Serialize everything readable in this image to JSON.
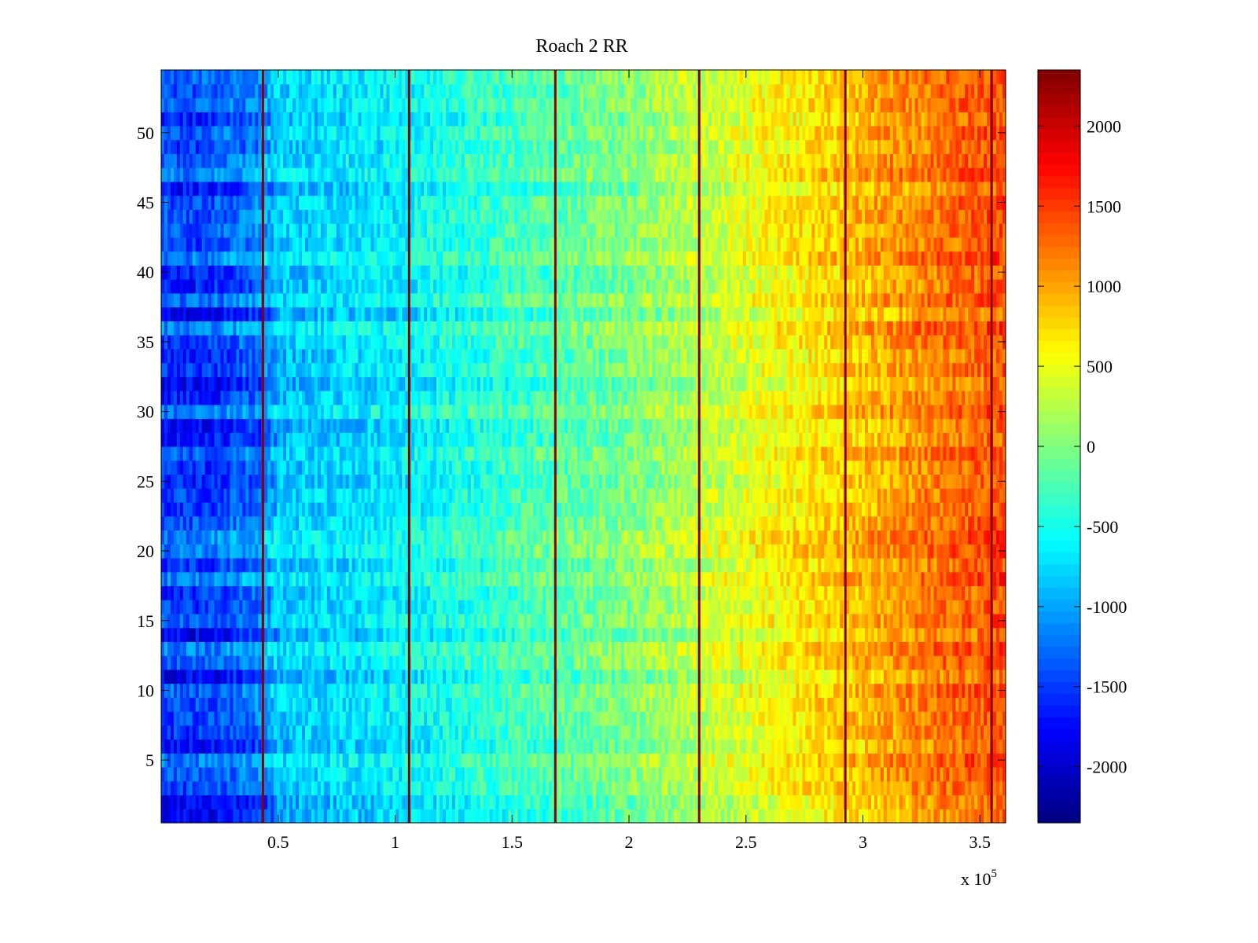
{
  "chart_data": {
    "type": "heatmap",
    "title": "Roach 2 RR",
    "xlabel": "",
    "ylabel": "",
    "colormap": "jet",
    "xlim": [
      0,
      361000
    ],
    "ylim": [
      0.5,
      54.5
    ],
    "x_ticks": [
      50000,
      100000,
      150000,
      200000,
      250000,
      300000,
      350000
    ],
    "x_tick_labels": [
      "0.5",
      "1",
      "1.5",
      "2",
      "2.5",
      "3",
      "3.5"
    ],
    "x_multiplier_label": "x 10",
    "x_multiplier_exponent": "5",
    "y_ticks": [
      5,
      10,
      15,
      20,
      25,
      30,
      35,
      40,
      45,
      50
    ],
    "y_tick_labels": [
      "5",
      "10",
      "15",
      "20",
      "25",
      "30",
      "35",
      "40",
      "45",
      "50"
    ],
    "colorbar": {
      "clim": [
        -2350,
        2350
      ],
      "ticks": [
        -2000,
        -1500,
        -1000,
        -500,
        0,
        500,
        1000,
        1500,
        2000
      ],
      "tick_labels": [
        "-2000",
        "-1500",
        "-1000",
        "-500",
        "0",
        "500",
        "1000",
        "1500",
        "2000"
      ]
    },
    "rows": 54,
    "x_profile": {
      "x": [
        0,
        20000,
        43000,
        50000,
        100000,
        150000,
        200000,
        250000,
        300000,
        330000,
        361000
      ],
      "value": [
        -1500,
        -1500,
        -1200,
        -850,
        -650,
        -300,
        0,
        450,
        900,
        1200,
        1400
      ]
    },
    "vertical_lines_x": [
      43500,
      106000,
      168500,
      230000,
      292500,
      355000
    ],
    "vertical_line_value": 2300
  }
}
